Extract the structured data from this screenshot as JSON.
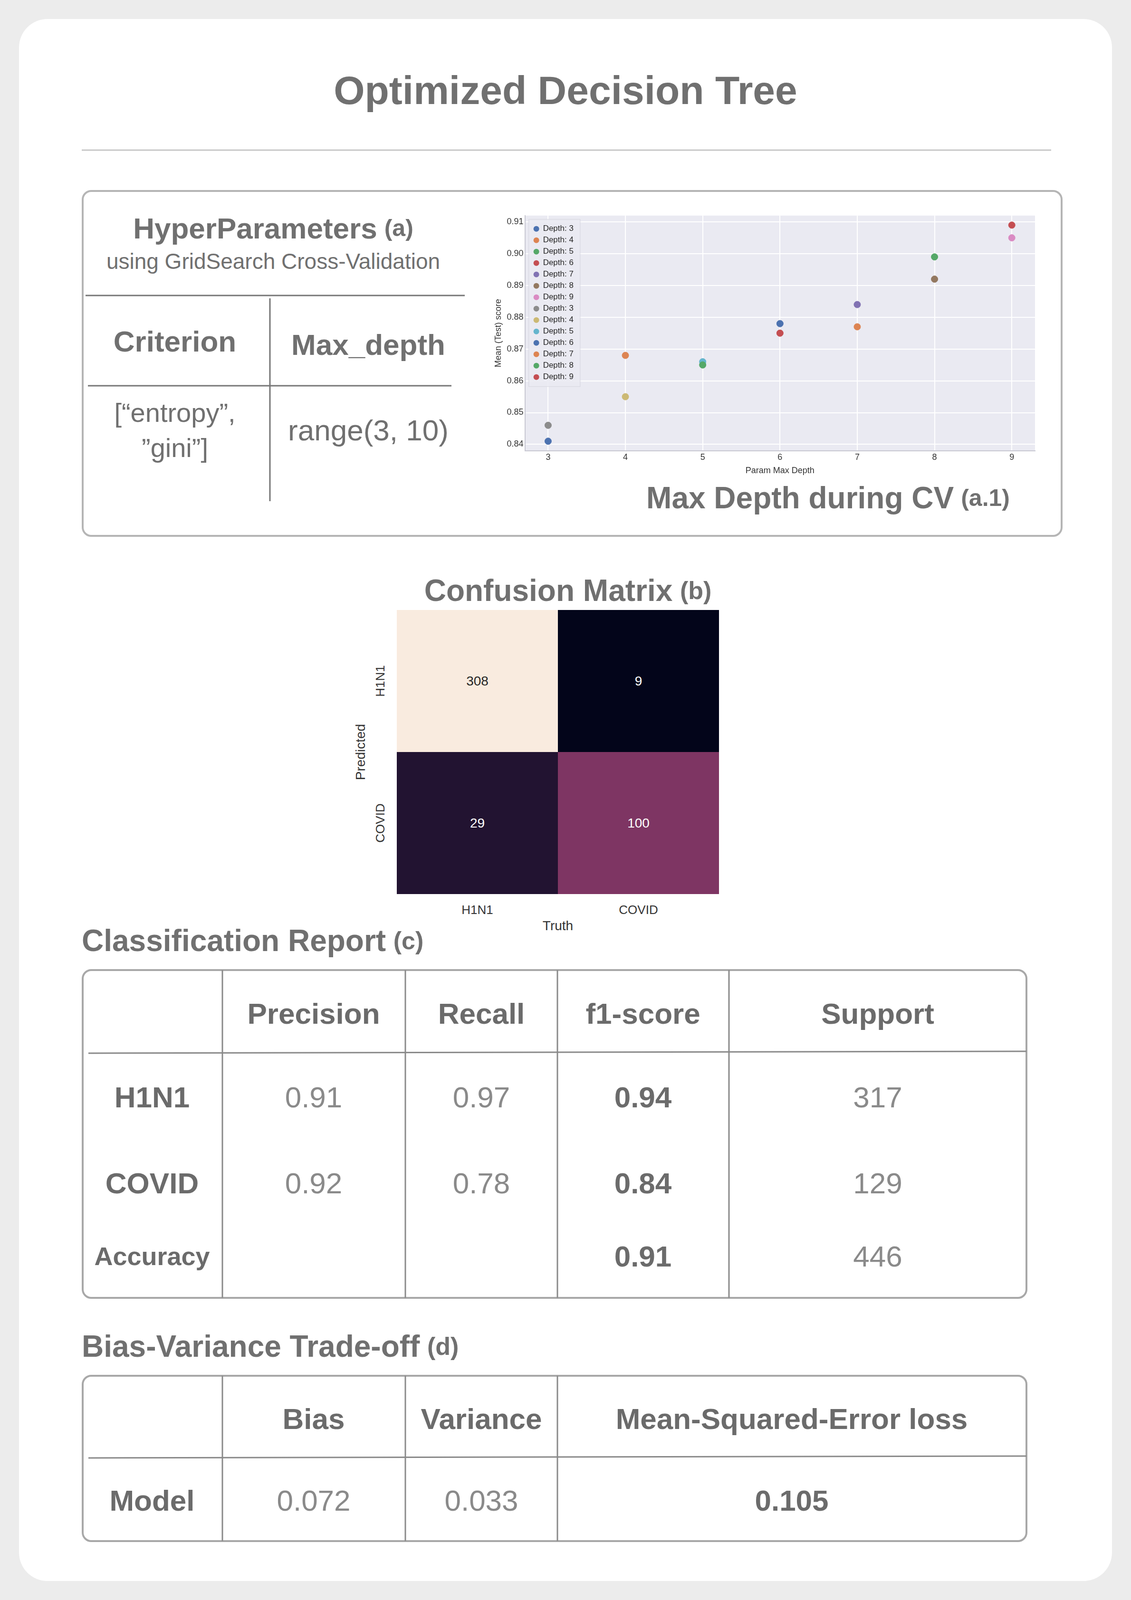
{
  "title": "Optimized Decision Tree",
  "hyperparameters": {
    "title": "HyperParameters",
    "tag": "(a)",
    "subtitle": "using GridSearch Cross-Validation",
    "columns": [
      "Criterion",
      "Max_depth"
    ],
    "rows": [
      [
        [
          "[“entropy”,",
          "”gini”]"
        ],
        "range(3, 10)"
      ]
    ]
  },
  "chart_caption": {
    "text": "Max Depth during CV",
    "tag": "(a.1)"
  },
  "chart_data": {
    "type": "scatter",
    "x_label": "Param Max Depth",
    "y_label": "Mean (Test) score",
    "xlim": [
      2.7,
      9.3
    ],
    "ylim": [
      0.838,
      0.912
    ],
    "xticks": [
      3,
      4,
      5,
      6,
      7,
      8,
      9
    ],
    "yticks": [
      0.84,
      0.85,
      0.86,
      0.87,
      0.88,
      0.89,
      {
        "value": 0.9,
        "label": "0.90"
      },
      0.91
    ],
    "grid": true,
    "legend": "upper left",
    "marker": "circle",
    "series": [
      {
        "name": "Depth: 3",
        "color": "#4c72b0",
        "x": [
          3
        ],
        "values": [
          0.841
        ]
      },
      {
        "name": "Depth: 4",
        "color": "#dd8452",
        "x": [
          4
        ],
        "values": [
          0.868
        ]
      },
      {
        "name": "Depth: 5",
        "color": "#55a868",
        "x": [
          5
        ],
        "values": [
          0.865
        ]
      },
      {
        "name": "Depth: 6",
        "color": "#c44e52",
        "x": [
          6
        ],
        "values": [
          0.875
        ]
      },
      {
        "name": "Depth: 7",
        "color": "#8172b3",
        "x": [
          7
        ],
        "values": [
          0.884
        ]
      },
      {
        "name": "Depth: 8",
        "color": "#937860",
        "x": [
          8
        ],
        "values": [
          0.892
        ]
      },
      {
        "name": "Depth: 9",
        "color": "#da8bc3",
        "x": [
          9
        ],
        "values": [
          0.905
        ]
      },
      {
        "name": "Depth: 3",
        "color": "#8c8c8c",
        "x": [
          3
        ],
        "values": [
          0.846
        ]
      },
      {
        "name": "Depth: 4",
        "color": "#ccb974",
        "x": [
          4
        ],
        "values": [
          0.855
        ]
      },
      {
        "name": "Depth: 5",
        "color": "#64b5cd",
        "x": [
          5
        ],
        "values": [
          0.866
        ]
      },
      {
        "name": "Depth: 6",
        "color": "#4c72b0",
        "x": [
          6
        ],
        "values": [
          0.878
        ]
      },
      {
        "name": "Depth: 7",
        "color": "#dd8452",
        "x": [
          7
        ],
        "values": [
          0.877
        ]
      },
      {
        "name": "Depth: 8",
        "color": "#55a868",
        "x": [
          8
        ],
        "values": [
          0.899
        ]
      },
      {
        "name": "Depth: 9",
        "color": "#c44e52",
        "x": [
          9
        ],
        "values": [
          0.909
        ]
      }
    ]
  },
  "confusion_matrix": {
    "title": "Confusion Matrix",
    "tag": "(b)",
    "x_label": "Truth",
    "y_label": "Predicted",
    "x_categories": [
      "H1N1",
      "COVID"
    ],
    "y_categories": [
      "H1N1",
      "COVID"
    ],
    "cells": [
      [
        308,
        9
      ],
      [
        29,
        100
      ]
    ],
    "colors": [
      [
        "#f9ebdf",
        "#03051a"
      ],
      [
        "#221331",
        "#7e3563"
      ]
    ]
  },
  "classification_report": {
    "title": "Classification Report",
    "tag": "(c)",
    "columns": [
      "Precision",
      "Recall",
      "f1-score",
      "Support"
    ],
    "rows": [
      {
        "label": "H1N1",
        "values": [
          0.91,
          0.97,
          0.94,
          317
        ]
      },
      {
        "label": "COVID",
        "values": [
          0.92,
          0.78,
          0.84,
          129
        ]
      },
      {
        "label": "Accuracy",
        "values": [
          null,
          null,
          0.91,
          446
        ]
      }
    ]
  },
  "bias_variance": {
    "title": "Bias-Variance Trade-off",
    "tag": "(d)",
    "columns": [
      "Bias",
      "Variance",
      "Mean-Squared-Error loss"
    ],
    "rows": [
      {
        "label": "Model",
        "values": [
          0.072,
          0.033,
          0.105
        ]
      }
    ]
  }
}
